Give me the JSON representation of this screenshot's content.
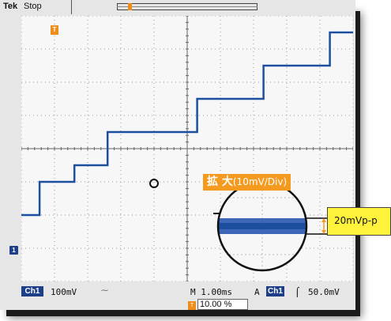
{
  "header": {
    "brand": "Tek",
    "run_status": "Stop"
  },
  "callout": {
    "title_main": "拡 大",
    "title_sub": "(10mV/Div)",
    "pp_label": "20mVp-p"
  },
  "markers": {
    "ch1_ground": "1",
    "trigger_position": "T"
  },
  "status_bar": {
    "channel": "Ch1",
    "volts_per_div": "100mV",
    "bandwidth_icon": "bw-limit-icon",
    "timebase": "M 1.00ms",
    "trigger_mode": "A",
    "trigger_source": "Ch1",
    "trigger_slope_icon": "rising-edge-icon",
    "trigger_level": "50.0mV"
  },
  "position": {
    "value": "10.00 %"
  },
  "colors": {
    "trace": "#1d4fa0",
    "accent_orange": "#f39a1f",
    "highlight_yellow": "#fff23a",
    "channel_badge": "#1d3f8a"
  },
  "chart_data": {
    "type": "line",
    "description_units": "divisions",
    "xlim": [
      0,
      10
    ],
    "ylim": [
      -4,
      4
    ],
    "series": [
      {
        "x": [
          0,
          0.55,
          0.55,
          1.6,
          1.6,
          2.6,
          2.6,
          3.55,
          3.55,
          5.3,
          5.3,
          7.3,
          7.3,
          9.3,
          9.3,
          10
        ],
        "y": [
          -2.0,
          -2.0,
          -1.0,
          -1.0,
          -0.5,
          -0.5,
          0.5,
          0.5,
          0.5,
          0.5,
          1.5,
          1.5,
          2.5,
          2.5,
          3.5,
          3.5
        ]
      }
    ]
  }
}
